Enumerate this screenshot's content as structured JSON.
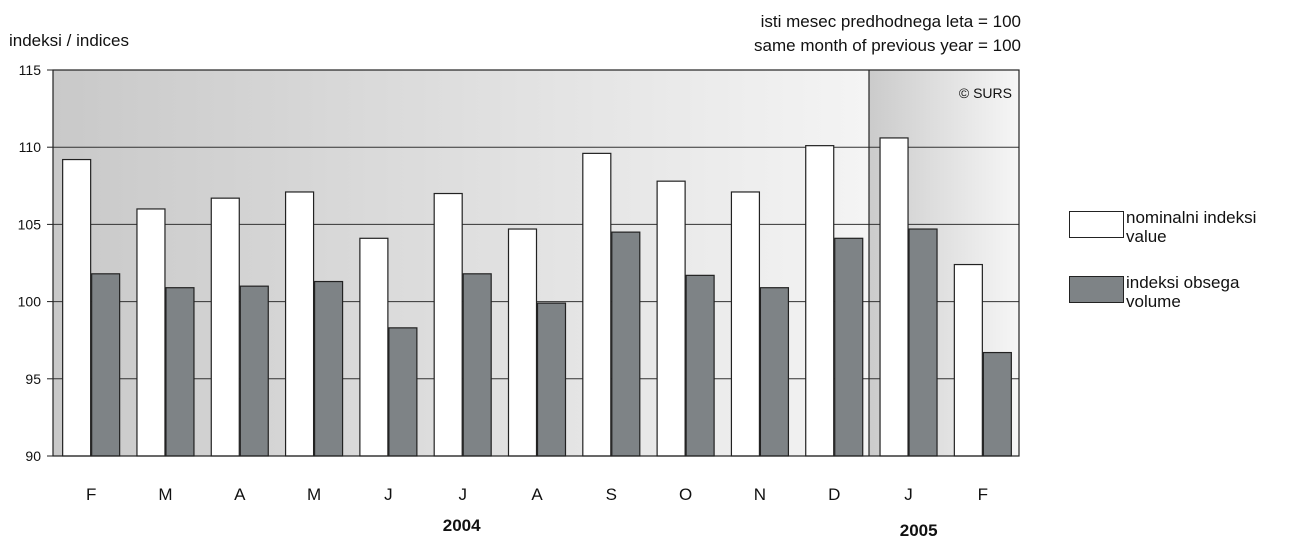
{
  "chart_data": {
    "type": "bar",
    "ylabel": "indeksi / indices",
    "note": [
      "isti mesec predhodnega leta = 100",
      "same month of previous year = 100"
    ],
    "watermark": "© SURS",
    "ylim": [
      90,
      115
    ],
    "yticks": [
      90,
      95,
      100,
      105,
      110,
      115
    ],
    "grid": true,
    "legend_position": "right",
    "categories": [
      "F",
      "M",
      "A",
      "M",
      "J",
      "J",
      "A",
      "S",
      "O",
      "N",
      "D",
      "J",
      "F"
    ],
    "year_groups": [
      {
        "label": "2004",
        "count": 11
      },
      {
        "label": "2005",
        "count": 2
      }
    ],
    "series": [
      {
        "name": "nominalni indeksi value",
        "legend_lines": [
          "nominalni indeksi",
          "value"
        ],
        "color": "#ffffff",
        "values": [
          109.2,
          106.0,
          106.7,
          107.1,
          104.1,
          107.0,
          104.7,
          109.6,
          107.8,
          107.1,
          110.1,
          110.6,
          102.4
        ]
      },
      {
        "name": "indeksi obsega volume",
        "legend_lines": [
          "indeksi obsega",
          "volume"
        ],
        "color": "#7e8386",
        "values": [
          101.8,
          100.9,
          101.0,
          101.3,
          98.3,
          101.8,
          99.9,
          104.5,
          101.7,
          100.9,
          104.1,
          104.7,
          96.7
        ]
      }
    ]
  }
}
